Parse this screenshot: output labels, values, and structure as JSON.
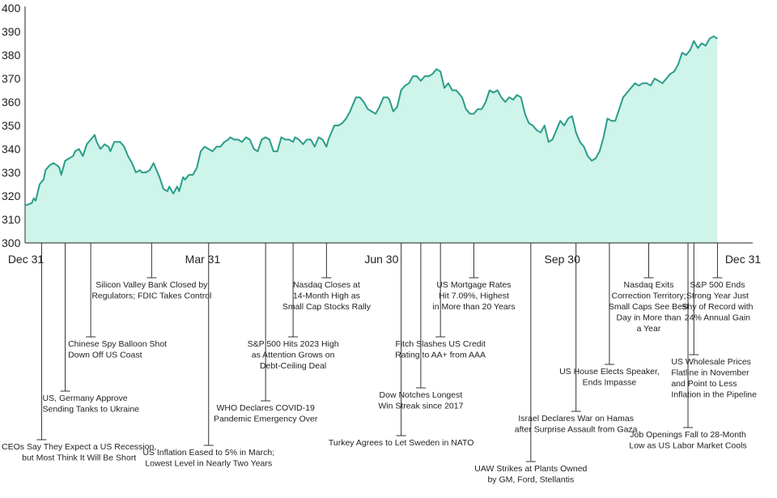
{
  "chart_data": {
    "type": "area",
    "title": "",
    "xlabel": "",
    "ylabel": "",
    "ylim": [
      300,
      400
    ],
    "yticks": [
      300,
      310,
      320,
      330,
      340,
      350,
      360,
      370,
      380,
      390,
      400
    ],
    "xticks": [
      {
        "label": "Dec 31",
        "day": 0
      },
      {
        "label": "Mar 31",
        "day": 90
      },
      {
        "label": "Jun 30",
        "day": 181
      },
      {
        "label": "Sep 30",
        "day": 273
      },
      {
        "label": "Dec 31",
        "day": 365
      }
    ],
    "xlim_days": [
      0,
      365
    ],
    "grid": false,
    "colors": {
      "fill": "#cff4ea",
      "line": "#2a9d8a"
    },
    "series": [
      {
        "values": [
          [
            0,
            316
          ],
          [
            3,
            317
          ],
          [
            4,
            319
          ],
          [
            5,
            318
          ],
          [
            7,
            325
          ],
          [
            9,
            327
          ],
          [
            10,
            331
          ],
          [
            12,
            333
          ],
          [
            14,
            334
          ],
          [
            16,
            333
          ],
          [
            17,
            332
          ],
          [
            18,
            329
          ],
          [
            20,
            335
          ],
          [
            22,
            336
          ],
          [
            24,
            337
          ],
          [
            25,
            339
          ],
          [
            27,
            340
          ],
          [
            29,
            337
          ],
          [
            31,
            342
          ],
          [
            33,
            344
          ],
          [
            35,
            346
          ],
          [
            36,
            343
          ],
          [
            38,
            340
          ],
          [
            40,
            342
          ],
          [
            42,
            341
          ],
          [
            43,
            339
          ],
          [
            45,
            343
          ],
          [
            48,
            343
          ],
          [
            50,
            341
          ],
          [
            52,
            337
          ],
          [
            54,
            334
          ],
          [
            56,
            330
          ],
          [
            58,
            331
          ],
          [
            59,
            330
          ],
          [
            61,
            330
          ],
          [
            63,
            331
          ],
          [
            65,
            334
          ],
          [
            67,
            330
          ],
          [
            68,
            328
          ],
          [
            70,
            323
          ],
          [
            72,
            322
          ],
          [
            73,
            324
          ],
          [
            75,
            321
          ],
          [
            77,
            324
          ],
          [
            78,
            322
          ],
          [
            80,
            328
          ],
          [
            81,
            327
          ],
          [
            83,
            329
          ],
          [
            85,
            329
          ],
          [
            87,
            332
          ],
          [
            89,
            339
          ],
          [
            91,
            341
          ],
          [
            93,
            340
          ],
          [
            95,
            339
          ],
          [
            97,
            341
          ],
          [
            99,
            341
          ],
          [
            101,
            343
          ],
          [
            103,
            344
          ],
          [
            104,
            345
          ],
          [
            106,
            344
          ],
          [
            108,
            344
          ],
          [
            110,
            343
          ],
          [
            112,
            345
          ],
          [
            114,
            344
          ],
          [
            116,
            340
          ],
          [
            118,
            339
          ],
          [
            120,
            344
          ],
          [
            122,
            345
          ],
          [
            124,
            344
          ],
          [
            126,
            339
          ],
          [
            128,
            339
          ],
          [
            130,
            345
          ],
          [
            132,
            344
          ],
          [
            134,
            344
          ],
          [
            136,
            343
          ],
          [
            137,
            345
          ],
          [
            139,
            344
          ],
          [
            141,
            342
          ],
          [
            143,
            344
          ],
          [
            145,
            344
          ],
          [
            147,
            341
          ],
          [
            149,
            345
          ],
          [
            151,
            344
          ],
          [
            153,
            341
          ],
          [
            154,
            344
          ],
          [
            157,
            350
          ],
          [
            159,
            350
          ],
          [
            161,
            351
          ],
          [
            163,
            353
          ],
          [
            165,
            356
          ],
          [
            166,
            358
          ],
          [
            168,
            362
          ],
          [
            170,
            362
          ],
          [
            172,
            360
          ],
          [
            174,
            357
          ],
          [
            176,
            356
          ],
          [
            178,
            355
          ],
          [
            180,
            358
          ],
          [
            182,
            362
          ],
          [
            184,
            362
          ],
          [
            185,
            361
          ],
          [
            187,
            356
          ],
          [
            189,
            358
          ],
          [
            191,
            365
          ],
          [
            193,
            367
          ],
          [
            195,
            368
          ],
          [
            197,
            371
          ],
          [
            199,
            371
          ],
          [
            201,
            369
          ],
          [
            203,
            371
          ],
          [
            205,
            371
          ],
          [
            207,
            372
          ],
          [
            209,
            374
          ],
          [
            211,
            373
          ],
          [
            213,
            366
          ],
          [
            215,
            368
          ],
          [
            217,
            365
          ],
          [
            219,
            365
          ],
          [
            222,
            362
          ],
          [
            224,
            357
          ],
          [
            226,
            355
          ],
          [
            228,
            355
          ],
          [
            230,
            357
          ],
          [
            232,
            357
          ],
          [
            234,
            360
          ],
          [
            236,
            365
          ],
          [
            238,
            364
          ],
          [
            240,
            365
          ],
          [
            242,
            362
          ],
          [
            244,
            360
          ],
          [
            246,
            362
          ],
          [
            248,
            361
          ],
          [
            250,
            363
          ],
          [
            252,
            362
          ],
          [
            254,
            355
          ],
          [
            256,
            351
          ],
          [
            258,
            350
          ],
          [
            260,
            348
          ],
          [
            262,
            347
          ],
          [
            264,
            350
          ],
          [
            266,
            343
          ],
          [
            268,
            344
          ],
          [
            270,
            348
          ],
          [
            272,
            352
          ],
          [
            274,
            350
          ],
          [
            276,
            353
          ],
          [
            278,
            354
          ],
          [
            280,
            347
          ],
          [
            282,
            343
          ],
          [
            284,
            341
          ],
          [
            286,
            337
          ],
          [
            288,
            335
          ],
          [
            290,
            336
          ],
          [
            292,
            339
          ],
          [
            294,
            345
          ],
          [
            296,
            353
          ],
          [
            298,
            352
          ],
          [
            300,
            352
          ],
          [
            302,
            357
          ],
          [
            304,
            362
          ],
          [
            306,
            364
          ],
          [
            308,
            366
          ],
          [
            310,
            368
          ],
          [
            312,
            367
          ],
          [
            314,
            368
          ],
          [
            316,
            368
          ],
          [
            318,
            367
          ],
          [
            320,
            370
          ],
          [
            322,
            369
          ],
          [
            324,
            368
          ],
          [
            326,
            370
          ],
          [
            328,
            372
          ],
          [
            330,
            373
          ],
          [
            332,
            376
          ],
          [
            334,
            381
          ],
          [
            336,
            380
          ],
          [
            338,
            382
          ],
          [
            340,
            386
          ],
          [
            342,
            383
          ],
          [
            344,
            385
          ],
          [
            346,
            384
          ],
          [
            348,
            387
          ],
          [
            350,
            388
          ],
          [
            352,
            387
          ]
        ]
      }
    ],
    "annotations": [
      {
        "label": "CEOs Say They Expect a US Recession,\nbut Most Think It Will Be Short",
        "day": 8,
        "align": "middle"
      },
      {
        "label": "US, Germany Approve\nSending Tanks to Ukraine",
        "day": 20,
        "align": "start"
      },
      {
        "label": "Chinese Spy Balloon Shot\nDown Off US Coast",
        "day": 33,
        "align": "start"
      },
      {
        "label": "Silicon Valley Bank Closed by\nRegulators; FDIC Takes Control",
        "day": 64,
        "align": "middle"
      },
      {
        "label": "US Inflation Eased to 5% in March;\nLowest Level in Nearly Two Years",
        "day": 93,
        "align": "middle"
      },
      {
        "label": "WHO Declares COVID-19\nPandemic Emergency Over",
        "day": 122,
        "align": "middle"
      },
      {
        "label": "S&P 500 Hits 2023 High\nas Attention Grows on\nDebt-Ceiling Deal",
        "day": 136,
        "align": "middle"
      },
      {
        "label": "Nasdaq Closes at\n14-Month High as\nSmall Cap Stocks Rally",
        "day": 153,
        "align": "middle"
      },
      {
        "label": "Turkey Agrees to Let Sweden in NATO",
        "day": 191,
        "align": "middle"
      },
      {
        "label": "Dow Notches Longest\nWin Streak since 2017",
        "day": 201,
        "align": "middle"
      },
      {
        "label": "Fitch Slashes US Credit\nRating to AA+ from AAA",
        "day": 211,
        "align": "middle"
      },
      {
        "label": "US Mortgage Rates\nHit 7.09%, Highest\nin More than 20 Years",
        "day": 228,
        "align": "middle"
      },
      {
        "label": "UAW Strikes at Plants Owned\nby GM, Ford, Stellantis",
        "day": 257,
        "align": "middle"
      },
      {
        "label": "Israel Declares War on Hamas\nafter Surprise Assault from Gaza",
        "day": 280,
        "align": "middle"
      },
      {
        "label": "US House Elects Speaker,\nEnds Impasse",
        "day": 297,
        "align": "middle"
      },
      {
        "label": "Nasdaq Exits\nCorrection Territory;\nSmall Caps See Best\nDay in More than\na Year",
        "day": 317,
        "align": "middle"
      },
      {
        "label": "Job Openings Fall to 28-Month\nLow as US Labor Market Cools",
        "day": 337,
        "align": "middle"
      },
      {
        "label": "US Wholesale Prices\nFlatline in November\nand Point to Less\nInflation in the Pipeline",
        "day": 340,
        "align": "start"
      },
      {
        "label": "S&P 500 Ends\nStrong Year Just\nShy of Record with\n24% Annual Gain",
        "day": 352,
        "align": "middle"
      }
    ]
  }
}
